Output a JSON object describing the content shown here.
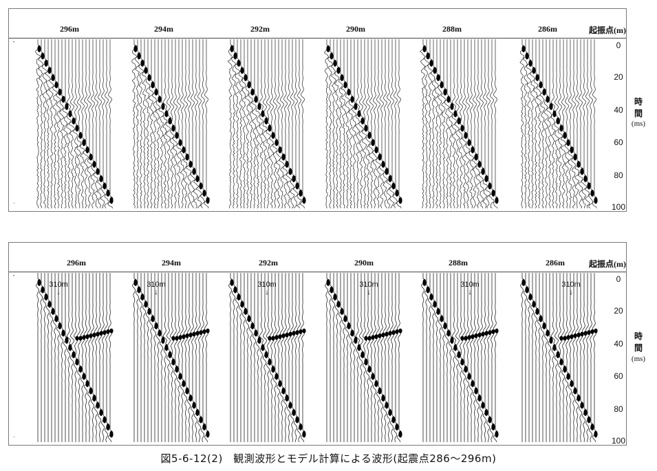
{
  "figure": {
    "caption": "図5-6-12(2)　観測波形とモデル計算による波形(起震点286～296m)",
    "axis_title": "起振点(m)",
    "time_label_line1": "時",
    "time_label_line2": "間",
    "time_unit": "(ms)",
    "time_ticks": [
      "0",
      "20",
      "40",
      "60",
      "80",
      "100"
    ],
    "marker_label": "310m",
    "marker_arrow": "↓"
  },
  "panels": [
    {
      "id": "observed",
      "offsets": [
        "296m",
        "294m",
        "292m",
        "290m",
        "288m",
        "286m"
      ]
    },
    {
      "id": "model",
      "offsets": [
        "296m",
        "294m",
        "292m",
        "290m",
        "288m",
        "286m"
      ]
    }
  ]
}
